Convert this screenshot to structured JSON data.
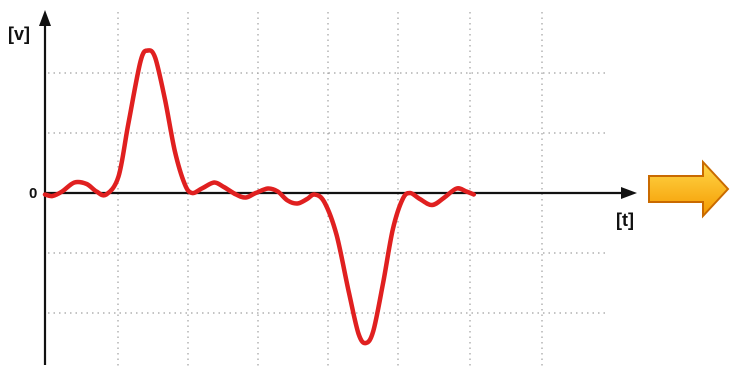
{
  "colors": {
    "curve": "#e02020",
    "axis": "#111111",
    "grid": "#a0a0a0",
    "arrow_fill_top": "#ffd84a",
    "arrow_fill_bottom": "#f59a00",
    "arrow_stroke": "#c96a00"
  },
  "icons": {
    "direction_arrow": "right-arrow-icon"
  },
  "chart_data": {
    "type": "line",
    "title": "",
    "xlabel": "[t]",
    "ylabel": "[v]",
    "y_tick_labels": [
      "0"
    ],
    "grid": true,
    "xlim": [
      0,
      20
    ],
    "ylim": [
      -5.4,
      5.4
    ],
    "series": [
      {
        "values": [
          [
            0.0,
            -0.05
          ],
          [
            0.3,
            -0.1
          ],
          [
            0.7,
            0.05
          ],
          [
            1.2,
            0.35
          ],
          [
            1.7,
            0.3
          ],
          [
            2.1,
            0.05
          ],
          [
            2.5,
            -0.05
          ],
          [
            3.0,
            0.55
          ],
          [
            3.4,
            2.3
          ],
          [
            3.9,
            4.4
          ],
          [
            4.2,
            4.75
          ],
          [
            4.5,
            4.5
          ],
          [
            4.9,
            3.1
          ],
          [
            5.3,
            1.4
          ],
          [
            5.7,
            0.3
          ],
          [
            6.0,
            0.0
          ],
          [
            6.4,
            0.15
          ],
          [
            6.9,
            0.35
          ],
          [
            7.3,
            0.2
          ],
          [
            7.8,
            -0.05
          ],
          [
            8.2,
            -0.15
          ],
          [
            8.6,
            0.0
          ],
          [
            9.1,
            0.15
          ],
          [
            9.5,
            0.05
          ],
          [
            9.9,
            -0.25
          ],
          [
            10.3,
            -0.35
          ],
          [
            10.7,
            -0.2
          ],
          [
            11.0,
            -0.05
          ],
          [
            11.4,
            -0.3
          ],
          [
            11.9,
            -1.4
          ],
          [
            12.4,
            -3.3
          ],
          [
            12.8,
            -4.7
          ],
          [
            13.1,
            -5.0
          ],
          [
            13.4,
            -4.6
          ],
          [
            13.8,
            -3.0
          ],
          [
            14.2,
            -1.2
          ],
          [
            14.6,
            -0.2
          ],
          [
            14.9,
            0.0
          ],
          [
            15.3,
            -0.2
          ],
          [
            15.8,
            -0.4
          ],
          [
            16.3,
            -0.15
          ],
          [
            16.8,
            0.15
          ],
          [
            17.2,
            0.05
          ],
          [
            17.5,
            -0.05
          ]
        ]
      }
    ]
  }
}
